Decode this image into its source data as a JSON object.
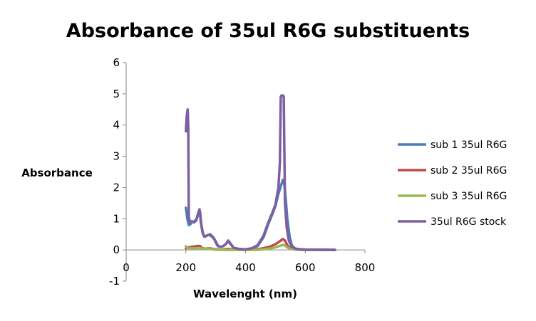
{
  "chart_data": {
    "type": "line",
    "title": "Absorbance  of 35ul R6G substituents",
    "xlabel": "Wavelenght (nm)",
    "ylabel": "Absorbance",
    "xlim": [
      0,
      800
    ],
    "ylim": [
      -1,
      6
    ],
    "xticks": [
      "0",
      "200",
      "400",
      "600",
      "800"
    ],
    "yticks": [
      "-1",
      "0",
      "1",
      "2",
      "3",
      "4",
      "5",
      "6"
    ],
    "grid": false,
    "legend_position": "right",
    "series": [
      {
        "name": "sub 1 35ul R6G",
        "color": "#4a7ebb",
        "points": [
          [
            200,
            1.35
          ],
          [
            205,
            1.0
          ],
          [
            210,
            0.8
          ],
          [
            215,
            0.82
          ],
          [
            220,
            0.9
          ],
          [
            228,
            0.88
          ],
          [
            235,
            0.95
          ],
          [
            242,
            1.15
          ],
          [
            248,
            1.2
          ],
          [
            252,
            0.8
          ],
          [
            258,
            0.5
          ],
          [
            265,
            0.43
          ],
          [
            275,
            0.48
          ],
          [
            285,
            0.45
          ],
          [
            295,
            0.35
          ],
          [
            305,
            0.15
          ],
          [
            315,
            0.1
          ],
          [
            325,
            0.12
          ],
          [
            335,
            0.2
          ],
          [
            342,
            0.28
          ],
          [
            350,
            0.18
          ],
          [
            360,
            0.06
          ],
          [
            380,
            0.02
          ],
          [
            400,
            0.02
          ],
          [
            420,
            0.04
          ],
          [
            440,
            0.12
          ],
          [
            460,
            0.4
          ],
          [
            475,
            0.8
          ],
          [
            490,
            1.15
          ],
          [
            500,
            1.4
          ],
          [
            510,
            1.8
          ],
          [
            520,
            2.1
          ],
          [
            525,
            2.25
          ],
          [
            530,
            2.1
          ],
          [
            535,
            1.6
          ],
          [
            540,
            1.0
          ],
          [
            548,
            0.4
          ],
          [
            555,
            0.15
          ],
          [
            565,
            0.05
          ],
          [
            580,
            0.02
          ],
          [
            600,
            0.01
          ],
          [
            650,
            0.01
          ],
          [
            700,
            0.0
          ]
        ]
      },
      {
        "name": "sub 2 35ul R6G",
        "color": "#be4b48",
        "points": [
          [
            200,
            0.05
          ],
          [
            210,
            0.08
          ],
          [
            220,
            0.1
          ],
          [
            230,
            0.11
          ],
          [
            240,
            0.13
          ],
          [
            248,
            0.12
          ],
          [
            255,
            0.05
          ],
          [
            265,
            0.04
          ],
          [
            280,
            0.05
          ],
          [
            300,
            0.02
          ],
          [
            320,
            0.01
          ],
          [
            340,
            0.03
          ],
          [
            360,
            0.01
          ],
          [
            400,
            0.0
          ],
          [
            440,
            0.02
          ],
          [
            480,
            0.1
          ],
          [
            500,
            0.18
          ],
          [
            515,
            0.28
          ],
          [
            525,
            0.35
          ],
          [
            532,
            0.3
          ],
          [
            540,
            0.15
          ],
          [
            550,
            0.05
          ],
          [
            570,
            0.01
          ],
          [
            600,
            0.0
          ],
          [
            700,
            0.0
          ]
        ]
      },
      {
        "name": "sub 3 35ul R6G",
        "color": "#98b954",
        "points": [
          [
            200,
            0.12
          ],
          [
            205,
            0.06
          ],
          [
            215,
            0.05
          ],
          [
            230,
            0.05
          ],
          [
            245,
            0.06
          ],
          [
            260,
            0.03
          ],
          [
            280,
            0.03
          ],
          [
            300,
            0.01
          ],
          [
            340,
            0.0
          ],
          [
            400,
            0.0
          ],
          [
            440,
            0.0
          ],
          [
            480,
            0.04
          ],
          [
            500,
            0.08
          ],
          [
            515,
            0.13
          ],
          [
            525,
            0.16
          ],
          [
            532,
            0.14
          ],
          [
            540,
            0.08
          ],
          [
            550,
            0.03
          ],
          [
            570,
            0.01
          ],
          [
            600,
            0.0
          ],
          [
            700,
            0.0
          ]
        ]
      },
      {
        "name": "35ul R6G stock",
        "color": "#7d5fa0",
        "points": [
          [
            200,
            3.8
          ],
          [
            203,
            4.3
          ],
          [
            206,
            4.5
          ],
          [
            208,
            4.0
          ],
          [
            210,
            1.05
          ],
          [
            214,
            0.88
          ],
          [
            220,
            0.92
          ],
          [
            228,
            0.9
          ],
          [
            236,
            1.0
          ],
          [
            242,
            1.2
          ],
          [
            246,
            1.3
          ],
          [
            250,
            0.9
          ],
          [
            256,
            0.55
          ],
          [
            262,
            0.42
          ],
          [
            272,
            0.47
          ],
          [
            282,
            0.5
          ],
          [
            292,
            0.4
          ],
          [
            300,
            0.28
          ],
          [
            308,
            0.12
          ],
          [
            318,
            0.1
          ],
          [
            328,
            0.14
          ],
          [
            335,
            0.2
          ],
          [
            342,
            0.3
          ],
          [
            350,
            0.2
          ],
          [
            360,
            0.07
          ],
          [
            380,
            0.03
          ],
          [
            400,
            0.02
          ],
          [
            420,
            0.05
          ],
          [
            440,
            0.15
          ],
          [
            460,
            0.45
          ],
          [
            475,
            0.85
          ],
          [
            490,
            1.2
          ],
          [
            500,
            1.45
          ],
          [
            510,
            2.0
          ],
          [
            515,
            2.8
          ],
          [
            518,
            4.9
          ],
          [
            520,
            4.95
          ],
          [
            526,
            4.95
          ],
          [
            528,
            4.9
          ],
          [
            532,
            1.5
          ],
          [
            538,
            0.7
          ],
          [
            545,
            0.3
          ],
          [
            555,
            0.1
          ],
          [
            570,
            0.03
          ],
          [
            600,
            0.01
          ],
          [
            650,
            0.01
          ],
          [
            700,
            0.0
          ]
        ]
      }
    ]
  }
}
